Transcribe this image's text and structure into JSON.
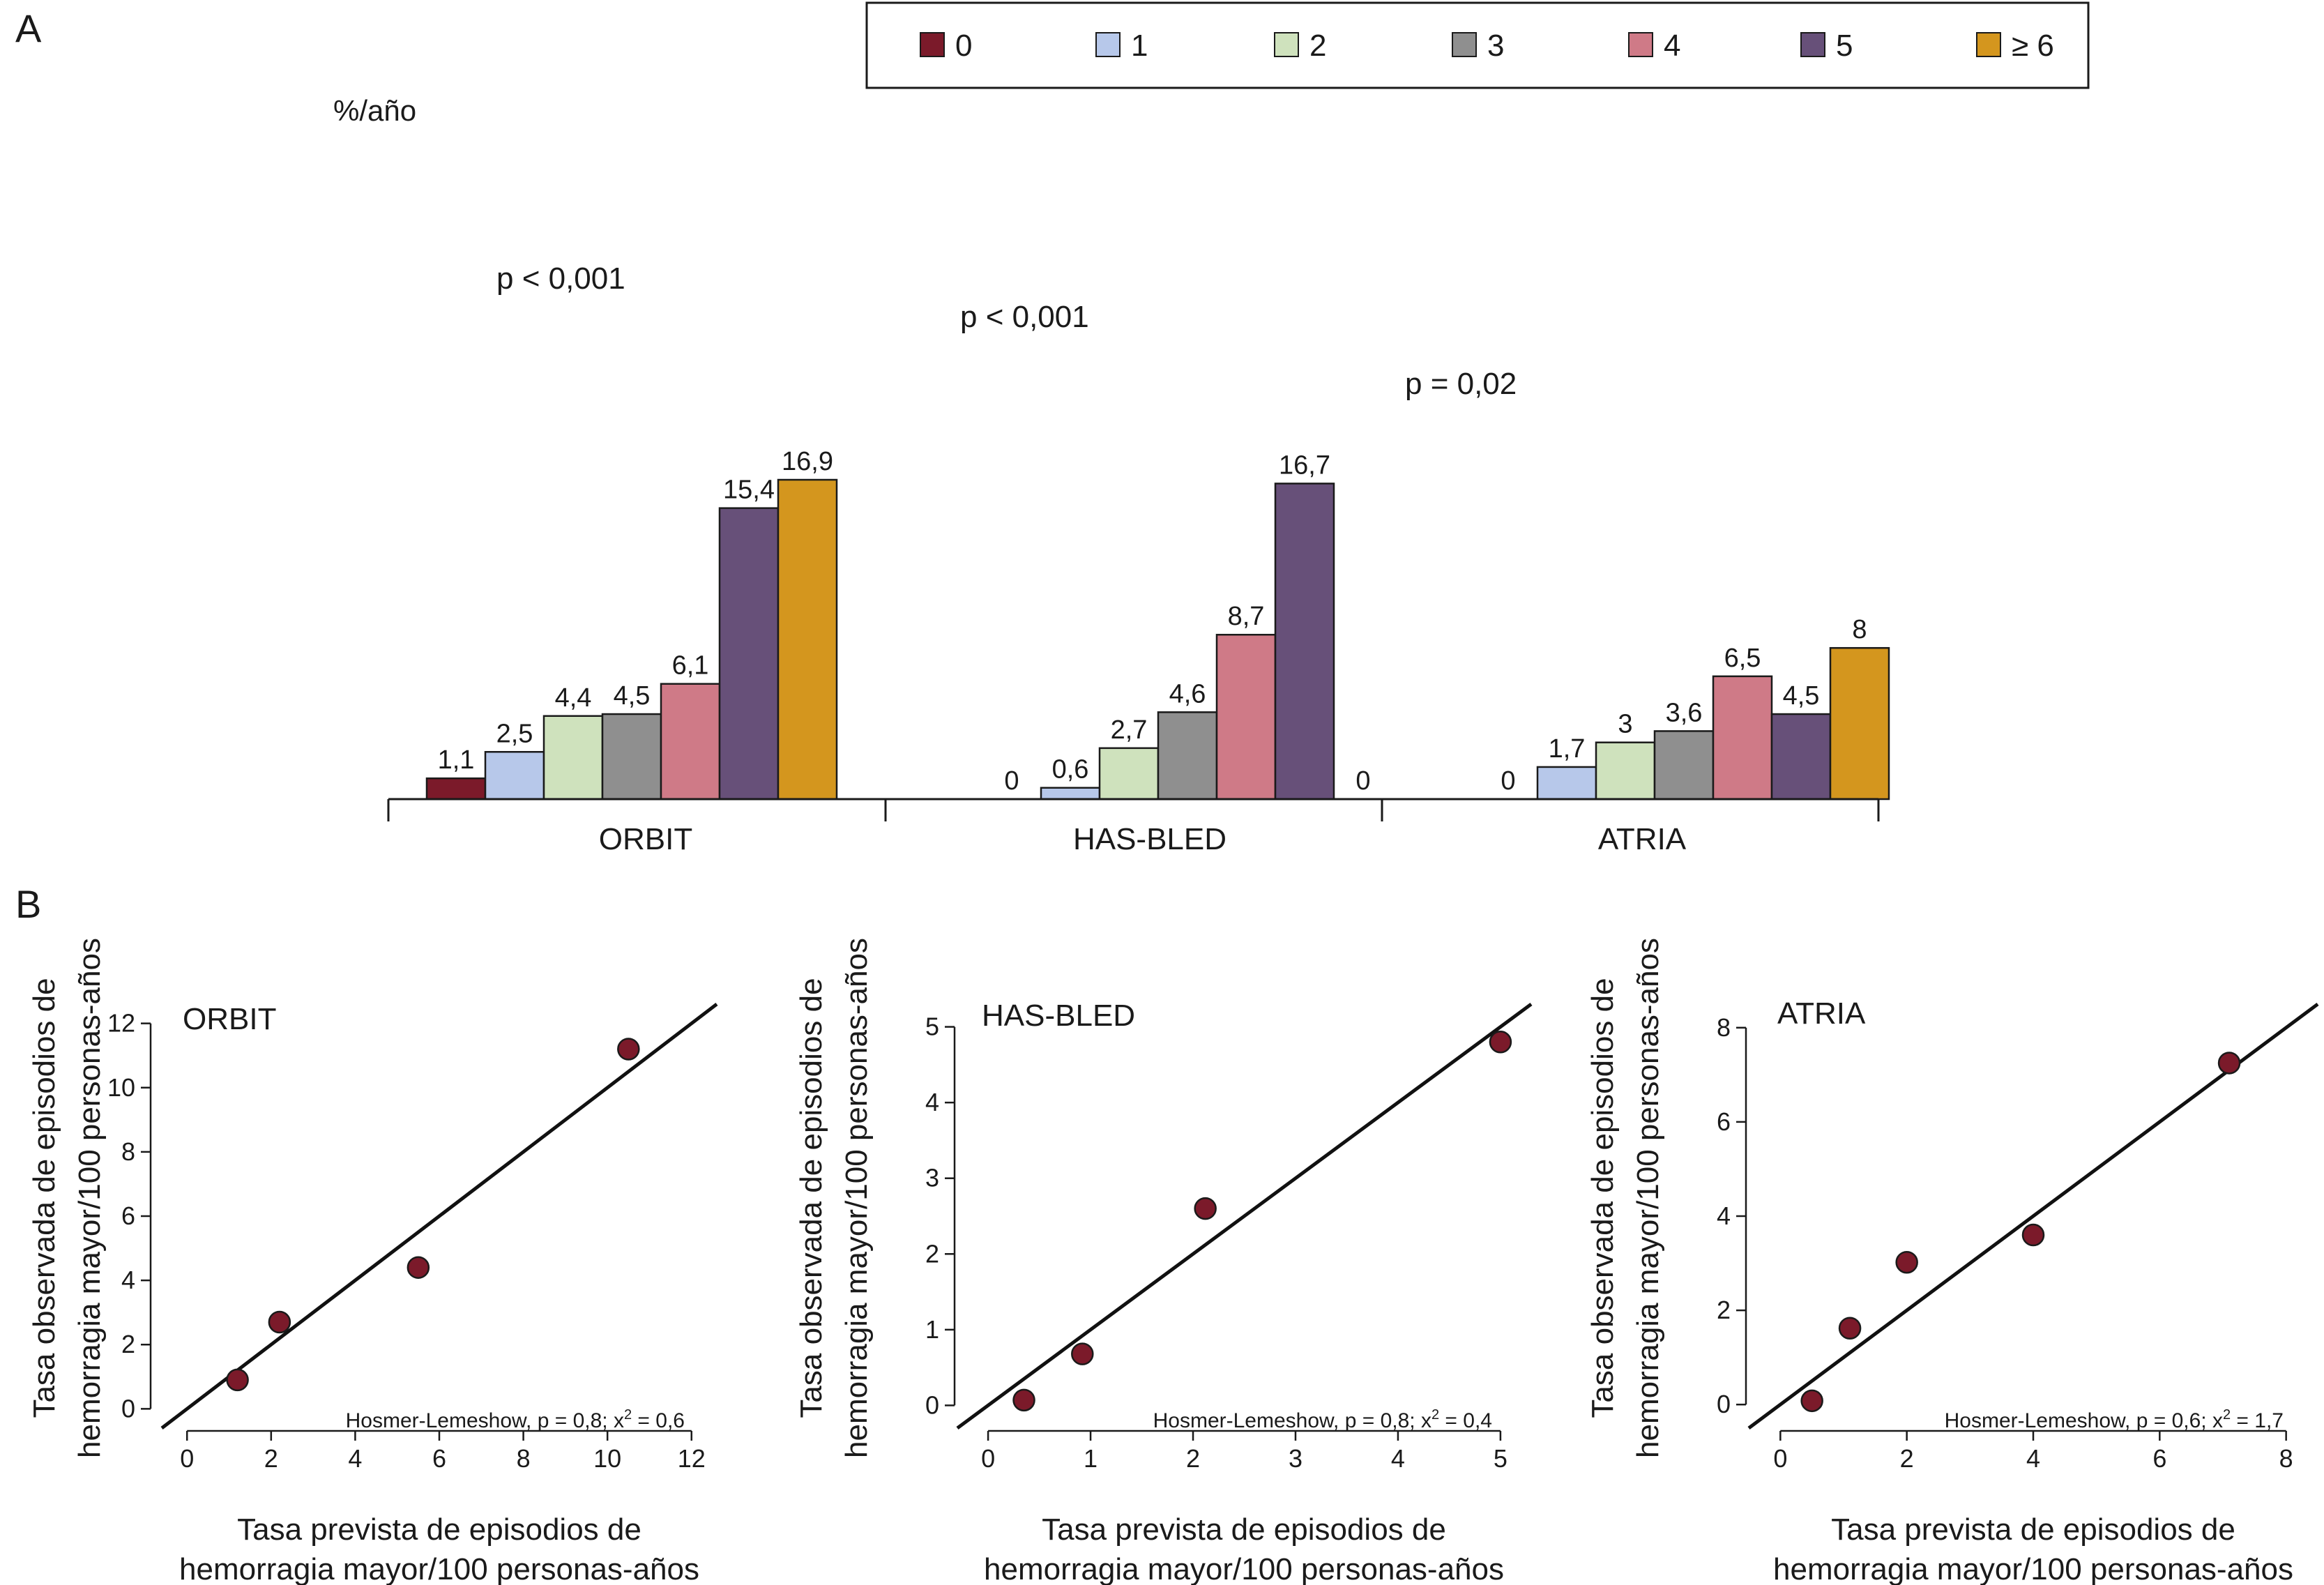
{
  "panel_a_letter": "A",
  "panel_b_letter": "B",
  "chart_data": [
    {
      "type": "bar",
      "ylabel": "%/año",
      "categories": [
        "ORBIT",
        "HAS-BLED",
        "ATRIA"
      ],
      "series": [
        {
          "name": "0",
          "color": "#7b1a2a",
          "values": [
            1.1,
            0,
            0
          ],
          "labels": [
            "1,1",
            "0",
            "0"
          ]
        },
        {
          "name": "1",
          "color": "#b7c8ea",
          "values": [
            2.5,
            0.6,
            1.7
          ],
          "labels": [
            "2,5",
            "0,6",
            "1,7"
          ]
        },
        {
          "name": "2",
          "color": "#cfe2bd",
          "values": [
            4.4,
            2.7,
            3
          ],
          "labels": [
            "4,4",
            "2,7",
            "3"
          ]
        },
        {
          "name": "3",
          "color": "#8f8f8f",
          "values": [
            4.5,
            4.6,
            3.6
          ],
          "labels": [
            "4,5",
            "4,6",
            "3,6"
          ]
        },
        {
          "name": "4",
          "color": "#cf7a87",
          "values": [
            6.1,
            8.7,
            6.5
          ],
          "labels": [
            "6,1",
            "8,7",
            "6,5"
          ]
        },
        {
          "name": "5",
          "color": "#675079",
          "values": [
            15.4,
            16.7,
            4.5
          ],
          "labels": [
            "15,4",
            "16,7",
            "4,5"
          ]
        },
        {
          "name": "≥ 6",
          "color": "#d4961e",
          "values": [
            16.9,
            0,
            8
          ],
          "labels": [
            "16,9",
            "0",
            "8"
          ]
        }
      ],
      "missing_bars": [
        [
          1,
          6
        ],
        [
          2,
          0
        ]
      ],
      "annotations": [
        "p < 0,001",
        "p < 0,001",
        "p = 0,02"
      ],
      "legend_position": "top",
      "ylim": [
        0,
        18
      ]
    },
    {
      "type": "scatter",
      "title": "ORBIT",
      "xlabel": [
        "Tasa prevista de episodios de",
        "hemorragia mayor/100 personas-años"
      ],
      "ylabel": [
        "Tasa observada de episodios de",
        "hemorragia mayor/100 personas-años"
      ],
      "xlim": [
        -0.8,
        12.8
      ],
      "ylim": [
        -0.6,
        12.6
      ],
      "xticks": [
        0,
        2,
        4,
        6,
        8,
        10,
        12
      ],
      "yticks": [
        0,
        2,
        4,
        6,
        8,
        10,
        12
      ],
      "points": [
        [
          1.2,
          0.9
        ],
        [
          2.2,
          2.7
        ],
        [
          5.5,
          4.4
        ],
        [
          10.5,
          11.2
        ]
      ],
      "line": [
        [
          -0.6,
          -0.6
        ],
        [
          12.6,
          12.6
        ]
      ],
      "note": {
        "main": "Hosmer-Lemeshow, p = 0,8; x",
        "sup": "2",
        "tail": " = 0,6"
      }
    },
    {
      "type": "scatter",
      "title": "HAS-BLED",
      "xlabel": [
        "Tasa prevista de episodios de",
        "hemorragia mayor/100 personas-años"
      ],
      "ylabel": [
        "Tasa observada de episodios de",
        "hemorragia mayor/100 personas-años"
      ],
      "xlim": [
        -0.3,
        5.3
      ],
      "ylim": [
        -0.3,
        5.3
      ],
      "xticks": [
        0,
        1,
        2,
        3,
        4,
        5
      ],
      "yticks": [
        0,
        1,
        2,
        3,
        4,
        5
      ],
      "points": [
        [
          0.35,
          0.07
        ],
        [
          0.92,
          0.68
        ],
        [
          2.12,
          2.6
        ],
        [
          5.0,
          4.8
        ]
      ],
      "line": [
        [
          -0.3,
          -0.3
        ],
        [
          5.3,
          5.3
        ]
      ],
      "note": {
        "main": "Hosmer-Lemeshow, p = 0,8; x",
        "sup": "2",
        "tail": " = 0,4"
      }
    },
    {
      "type": "scatter",
      "title": "ATRIA",
      "xlabel": [
        "Tasa prevista de episodios de",
        "hemorragia mayor/100 personas-años"
      ],
      "ylabel": [
        "Tasa observada de episodios de",
        "hemorragia mayor/100 personas-años"
      ],
      "xlim": [
        -0.5,
        8.5
      ],
      "ylim": [
        -0.5,
        8.5
      ],
      "xticks": [
        0,
        2,
        4,
        6,
        8
      ],
      "yticks": [
        0,
        2,
        4,
        6,
        8
      ],
      "points": [
        [
          0.5,
          0.08
        ],
        [
          1.1,
          1.62
        ],
        [
          2.0,
          3.02
        ],
        [
          4.0,
          3.6
        ],
        [
          7.1,
          7.25
        ]
      ],
      "line": [
        [
          -0.5,
          -0.5
        ],
        [
          8.5,
          8.5
        ]
      ],
      "note": {
        "main": "Hosmer-Lemeshow, p = 0,6; x",
        "sup": "2",
        "tail": " = 1,7"
      }
    }
  ]
}
